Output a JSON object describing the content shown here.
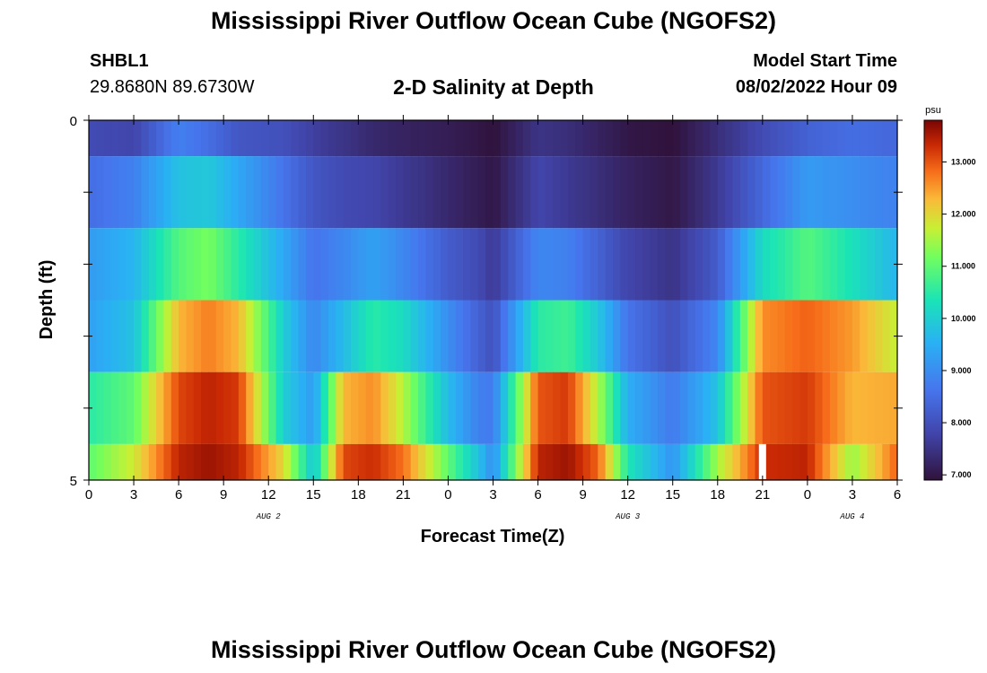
{
  "header": {
    "title": "Mississippi River Outflow Ocean Cube (NGOFS2)",
    "station_id": "SHBL1",
    "station_coords": "29.8680N  89.6730W",
    "subtitle": "2-D Salinity at Depth",
    "model_start_label": "Model Start Time",
    "model_start_value": "08/02/2022 Hour 09"
  },
  "footer": {
    "title_repeat": "Mississippi River Outflow Ocean Cube (NGOFS2)"
  },
  "chart_data": {
    "type": "heatmap",
    "title": "2-D Salinity at Depth",
    "xlabel": "Forecast Time(Z)",
    "ylabel": "Depth (ft)",
    "x_tick_labels": [
      "0",
      "3",
      "6",
      "9",
      "12",
      "15",
      "18",
      "21",
      "0",
      "3",
      "6",
      "9",
      "12",
      "15",
      "18",
      "21",
      "0",
      "3",
      "6"
    ],
    "x_hours": [
      0,
      54
    ],
    "date_labels": [
      {
        "label": "AUG 2",
        "hour": 12
      },
      {
        "label": "AUG 3",
        "hour": 36
      },
      {
        "label": "AUG 4",
        "hour": 51
      }
    ],
    "y_tick_labels": [
      "0",
      "5"
    ],
    "ylim": [
      0,
      5
    ],
    "layers": [
      {
        "depth_top": 0.0,
        "depth_bottom": 0.5
      },
      {
        "depth_top": 0.5,
        "depth_bottom": 1.5
      },
      {
        "depth_top": 1.5,
        "depth_bottom": 2.5
      },
      {
        "depth_top": 2.5,
        "depth_bottom": 3.5
      },
      {
        "depth_top": 3.5,
        "depth_bottom": 4.5
      },
      {
        "depth_top": 4.5,
        "depth_bottom": 5.0
      }
    ],
    "salinity_keyframes": [
      {
        "hour": 0,
        "values": [
          7.9,
          8.5,
          9.2,
          9.3,
          10.5,
          11.0
        ]
      },
      {
        "hour": 3,
        "values": [
          7.8,
          8.8,
          9.6,
          9.8,
          11.0,
          11.8
        ]
      },
      {
        "hour": 6,
        "values": [
          8.8,
          9.8,
          10.9,
          12.3,
          13.1,
          13.4
        ]
      },
      {
        "hour": 8,
        "values": [
          8.5,
          9.9,
          11.2,
          12.7,
          13.4,
          13.6
        ]
      },
      {
        "hour": 10,
        "values": [
          8.1,
          9.4,
          10.5,
          12.3,
          13.2,
          13.4
        ]
      },
      {
        "hour": 13,
        "values": [
          8.0,
          8.6,
          9.4,
          10.0,
          10.0,
          12.0
        ]
      },
      {
        "hour": 15,
        "values": [
          7.7,
          8.1,
          8.6,
          8.9,
          9.2,
          9.8
        ]
      },
      {
        "hour": 17,
        "values": [
          7.5,
          7.9,
          8.9,
          9.7,
          12.3,
          13.1
        ]
      },
      {
        "hour": 19,
        "values": [
          7.3,
          7.8,
          9.3,
          10.5,
          12.6,
          13.3
        ]
      },
      {
        "hour": 21,
        "values": [
          7.2,
          7.6,
          8.9,
          10.2,
          11.6,
          12.8
        ]
      },
      {
        "hour": 24,
        "values": [
          7.1,
          7.3,
          8.2,
          9.0,
          9.7,
          11.0
        ]
      },
      {
        "hour": 26,
        "values": [
          7.0,
          7.1,
          7.9,
          8.3,
          8.8,
          9.8
        ]
      },
      {
        "hour": 27,
        "values": [
          6.9,
          7.0,
          7.6,
          8.0,
          8.7,
          9.0
        ]
      },
      {
        "hour": 30,
        "values": [
          7.5,
          7.8,
          8.9,
          10.5,
          13.0,
          13.4
        ]
      },
      {
        "hour": 32,
        "values": [
          7.4,
          7.6,
          8.8,
          10.7,
          13.2,
          13.6
        ]
      },
      {
        "hour": 34,
        "values": [
          7.2,
          7.4,
          8.3,
          9.9,
          11.6,
          12.9
        ]
      },
      {
        "hour": 36,
        "values": [
          7.0,
          7.2,
          7.8,
          8.6,
          9.5,
          10.4
        ]
      },
      {
        "hour": 39,
        "values": [
          6.9,
          7.0,
          7.5,
          8.0,
          8.7,
          9.1
        ]
      },
      {
        "hour": 42,
        "values": [
          7.4,
          7.6,
          8.2,
          8.9,
          9.8,
          11.5
        ]
      },
      {
        "hour": 45,
        "values": [
          7.9,
          8.4,
          10.2,
          12.6,
          13.0,
          13.3
        ]
      },
      {
        "hour": 48,
        "values": [
          8.3,
          9.2,
          10.9,
          12.9,
          13.2,
          13.4
        ]
      },
      {
        "hour": 51,
        "values": [
          8.5,
          9.0,
          10.3,
          12.5,
          12.3,
          11.4
        ]
      },
      {
        "hour": 54,
        "values": [
          8.4,
          8.8,
          9.6,
          11.7,
          12.4,
          12.9
        ]
      }
    ],
    "gap_marker_hour": 45,
    "colorbar": {
      "unit": "psu",
      "min": 6.9,
      "max": 13.8,
      "tick_labels": [
        "7.000",
        "8.000",
        "9.000",
        "10.000",
        "11.000",
        "12.000",
        "13.000"
      ],
      "tick_values": [
        7,
        8,
        9,
        10,
        11,
        12,
        13
      ],
      "colormap": "turbo"
    },
    "grid": false
  }
}
